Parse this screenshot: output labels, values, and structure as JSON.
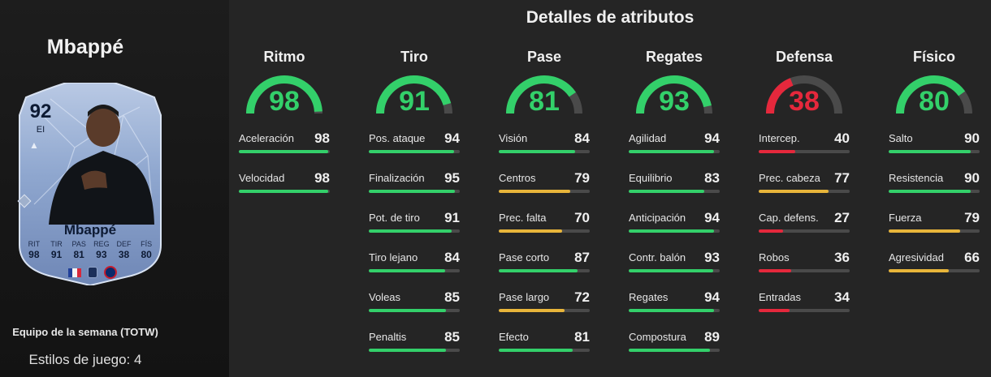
{
  "player": {
    "name_title": "Mbappé",
    "card_name": "Mbappé",
    "rating": "92",
    "position": "EI",
    "stat_labels": [
      "RIT",
      "TIR",
      "PAS",
      "REG",
      "DEF",
      "FÍS"
    ],
    "stat_values": [
      "98",
      "91",
      "81",
      "93",
      "38",
      "80"
    ],
    "team_of_week": "Equipo de la semana (TOTW)",
    "playstyles": "Estilos de juego: 4"
  },
  "main_title": "Detalles de atributos",
  "colors": {
    "high": "#33d06a",
    "mid": "#e8b53a",
    "low": "#e5283c",
    "track": "#4a4a4a"
  },
  "categories": [
    {
      "title": "Ritmo",
      "value": 98,
      "attrs": [
        {
          "name": "Aceleración",
          "value": 98
        },
        {
          "name": "Velocidad",
          "value": 98
        }
      ]
    },
    {
      "title": "Tiro",
      "value": 91,
      "attrs": [
        {
          "name": "Pos. ataque",
          "value": 94
        },
        {
          "name": "Finalización",
          "value": 95
        },
        {
          "name": "Pot. de tiro",
          "value": 91
        },
        {
          "name": "Tiro lejano",
          "value": 84
        },
        {
          "name": "Voleas",
          "value": 85
        },
        {
          "name": "Penaltis",
          "value": 85
        }
      ]
    },
    {
      "title": "Pase",
      "value": 81,
      "attrs": [
        {
          "name": "Visión",
          "value": 84
        },
        {
          "name": "Centros",
          "value": 79
        },
        {
          "name": "Prec. falta",
          "value": 70
        },
        {
          "name": "Pase corto",
          "value": 87
        },
        {
          "name": "Pase largo",
          "value": 72
        },
        {
          "name": "Efecto",
          "value": 81
        }
      ]
    },
    {
      "title": "Regates",
      "value": 93,
      "attrs": [
        {
          "name": "Agilidad",
          "value": 94
        },
        {
          "name": "Equilibrio",
          "value": 83
        },
        {
          "name": "Anticipación",
          "value": 94
        },
        {
          "name": "Contr. balón",
          "value": 93
        },
        {
          "name": "Regates",
          "value": 94
        },
        {
          "name": "Compostura",
          "value": 89
        }
      ]
    },
    {
      "title": "Defensa",
      "value": 38,
      "attrs": [
        {
          "name": "Intercep.",
          "value": 40
        },
        {
          "name": "Prec. cabeza",
          "value": 77
        },
        {
          "name": "Cap. defens.",
          "value": 27
        },
        {
          "name": "Robos",
          "value": 36
        },
        {
          "name": "Entradas",
          "value": 34
        }
      ]
    },
    {
      "title": "Físico",
      "value": 80,
      "attrs": [
        {
          "name": "Salto",
          "value": 90
        },
        {
          "name": "Resistencia",
          "value": 90
        },
        {
          "name": "Fuerza",
          "value": 79
        },
        {
          "name": "Agresividad",
          "value": 66
        }
      ]
    }
  ]
}
